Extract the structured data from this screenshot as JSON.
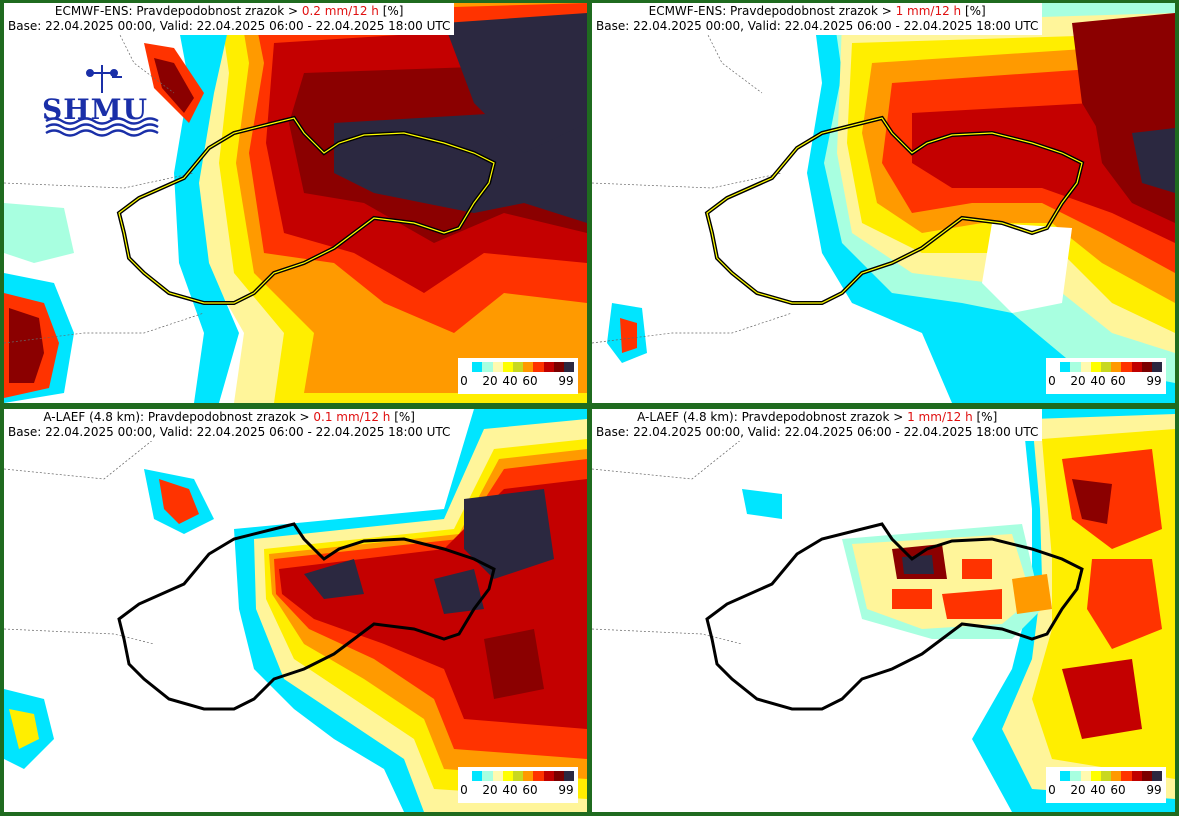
{
  "panels": [
    {
      "id": "p1",
      "title_prefix": "ECMWF-ENS: Pravdepodobnost zrazok > ",
      "threshold": "0.2 mm/12 h",
      "title_suffix": " [%]",
      "line2": "Base: 22.04.2025 00:00, Valid: 22.04.2025 06:00 - 22.04.2025 18:00 UTC"
    },
    {
      "id": "p2",
      "title_prefix": "ECMWF-ENS: Pravdepodobnost zrazok > ",
      "threshold": "1 mm/12 h",
      "title_suffix": " [%]",
      "line2": "Base: 22.04.2025 00:00, Valid: 22.04.2025 06:00 - 22.04.2025 18:00 UTC"
    },
    {
      "id": "p3",
      "title_prefix": "A-LAEF (4.8 km): Pravdepodobnost zrazok > ",
      "threshold": "0.1 mm/12 h",
      "title_suffix": " [%]",
      "line2": "Base: 22.04.2025 00:00, Valid: 22.04.2025 06:00 - 22.04.2025 18:00 UTC"
    },
    {
      "id": "p4",
      "title_prefix": "A-LAEF (4.8 km): Pravdepodobnost zrazok > ",
      "threshold": "1 mm/12 h",
      "title_suffix": " [%]",
      "line2": "Base: 22.04.2025 00:00, Valid: 22.04.2025 06:00 - 22.04.2025 18:00 UTC"
    }
  ],
  "logo": {
    "text": "SHMU",
    "icon": "weather-station-icon"
  },
  "legend": {
    "ticks": [
      "0",
      "20",
      "40",
      "60",
      "99"
    ],
    "colors": [
      "#ffffff",
      "#00e5ff",
      "#a8ffe0",
      "#fffab0",
      "#ffff00",
      "#c8d820",
      "#ff9900",
      "#ff3300",
      "#c00000",
      "#7a0000",
      "#2b2840"
    ]
  }
}
